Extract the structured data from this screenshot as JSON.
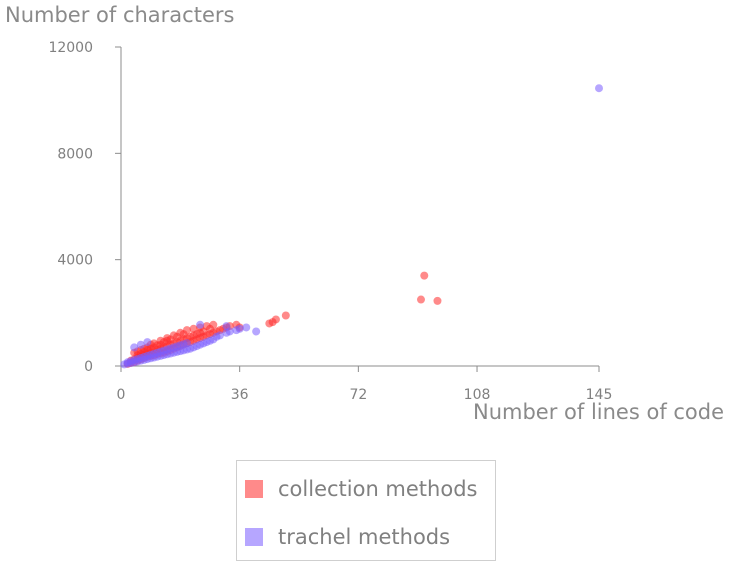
{
  "chart_data": {
    "type": "scatter",
    "xlabel": "Number of lines of code",
    "ylabel": "Number of characters",
    "xlim": [
      0,
      145
    ],
    "ylim": [
      0,
      12000
    ],
    "x_ticks": [
      0,
      36,
      72,
      108,
      145
    ],
    "y_ticks": [
      0,
      4000,
      8000,
      12000
    ],
    "grid": false,
    "legend_position": "bottom-center",
    "series": [
      {
        "name": "collection methods",
        "color": "#ff2a2a",
        "points": [
          [
            2,
            80
          ],
          [
            3,
            120
          ],
          [
            3,
            200
          ],
          [
            4,
            150
          ],
          [
            4,
            250
          ],
          [
            5,
            200
          ],
          [
            5,
            300
          ],
          [
            5,
            400
          ],
          [
            6,
            250
          ],
          [
            6,
            350
          ],
          [
            6,
            450
          ],
          [
            7,
            300
          ],
          [
            7,
            420
          ],
          [
            7,
            520
          ],
          [
            8,
            350
          ],
          [
            8,
            450
          ],
          [
            8,
            600
          ],
          [
            9,
            380
          ],
          [
            9,
            500
          ],
          [
            9,
            650
          ],
          [
            10,
            400
          ],
          [
            10,
            550
          ],
          [
            10,
            700
          ],
          [
            11,
            450
          ],
          [
            11,
            600
          ],
          [
            11,
            780
          ],
          [
            12,
            480
          ],
          [
            12,
            650
          ],
          [
            12,
            800
          ],
          [
            13,
            500
          ],
          [
            13,
            700
          ],
          [
            13,
            900
          ],
          [
            14,
            550
          ],
          [
            14,
            750
          ],
          [
            14,
            950
          ],
          [
            15,
            600
          ],
          [
            15,
            800
          ],
          [
            15,
            1000
          ],
          [
            16,
            650
          ],
          [
            16,
            850
          ],
          [
            17,
            700
          ],
          [
            17,
            900
          ],
          [
            17,
            1100
          ],
          [
            18,
            750
          ],
          [
            18,
            950
          ],
          [
            19,
            800
          ],
          [
            19,
            1000
          ],
          [
            19,
            1200
          ],
          [
            20,
            850
          ],
          [
            20,
            1050
          ],
          [
            21,
            900
          ],
          [
            21,
            1100
          ],
          [
            22,
            950
          ],
          [
            22,
            1150
          ],
          [
            23,
            1000
          ],
          [
            23,
            1200
          ],
          [
            24,
            1050
          ],
          [
            24,
            1250
          ],
          [
            25,
            1100
          ],
          [
            25,
            1300
          ],
          [
            26,
            1150
          ],
          [
            27,
            1200
          ],
          [
            27,
            1400
          ],
          [
            28,
            1250
          ],
          [
            29,
            1300
          ],
          [
            30,
            1350
          ],
          [
            31,
            1400
          ],
          [
            32,
            1450
          ],
          [
            33,
            1500
          ],
          [
            35,
            1550
          ],
          [
            36,
            1450
          ],
          [
            45,
            1600
          ],
          [
            46,
            1650
          ],
          [
            47,
            1750
          ],
          [
            50,
            1900
          ],
          [
            4,
            500
          ],
          [
            5,
            550
          ],
          [
            6,
            600
          ],
          [
            7,
            650
          ],
          [
            8,
            700
          ],
          [
            9,
            800
          ],
          [
            10,
            850
          ],
          [
            12,
            950
          ],
          [
            14,
            1050
          ],
          [
            16,
            1150
          ],
          [
            18,
            1250
          ],
          [
            20,
            1350
          ],
          [
            22,
            1400
          ],
          [
            24,
            1450
          ],
          [
            26,
            1500
          ],
          [
            28,
            1550
          ],
          [
            92,
            3400
          ],
          [
            91,
            2500
          ],
          [
            96,
            2450
          ]
        ]
      },
      {
        "name": "trachel methods",
        "color": "#7a5cff",
        "points": [
          [
            1,
            60
          ],
          [
            2,
            90
          ],
          [
            2,
            140
          ],
          [
            3,
            110
          ],
          [
            3,
            180
          ],
          [
            4,
            140
          ],
          [
            4,
            220
          ],
          [
            5,
            170
          ],
          [
            5,
            260
          ],
          [
            6,
            200
          ],
          [
            6,
            300
          ],
          [
            7,
            230
          ],
          [
            7,
            340
          ],
          [
            8,
            260
          ],
          [
            8,
            380
          ],
          [
            9,
            290
          ],
          [
            9,
            420
          ],
          [
            10,
            320
          ],
          [
            10,
            460
          ],
          [
            11,
            350
          ],
          [
            11,
            500
          ],
          [
            12,
            380
          ],
          [
            12,
            540
          ],
          [
            13,
            410
          ],
          [
            13,
            580
          ],
          [
            14,
            440
          ],
          [
            14,
            620
          ],
          [
            15,
            470
          ],
          [
            15,
            660
          ],
          [
            16,
            500
          ],
          [
            16,
            700
          ],
          [
            17,
            530
          ],
          [
            17,
            740
          ],
          [
            18,
            560
          ],
          [
            18,
            780
          ],
          [
            19,
            590
          ],
          [
            19,
            820
          ],
          [
            20,
            620
          ],
          [
            20,
            860
          ],
          [
            21,
            650
          ],
          [
            22,
            700
          ],
          [
            23,
            750
          ],
          [
            24,
            800
          ],
          [
            25,
            850
          ],
          [
            26,
            900
          ],
          [
            27,
            950
          ],
          [
            28,
            1000
          ],
          [
            29,
            1100
          ],
          [
            30,
            1150
          ],
          [
            32,
            1250
          ],
          [
            33,
            1300
          ],
          [
            35,
            1350
          ],
          [
            36,
            1400
          ],
          [
            38,
            1450
          ],
          [
            41,
            1300
          ],
          [
            32,
            1500
          ],
          [
            4,
            700
          ],
          [
            6,
            800
          ],
          [
            8,
            900
          ],
          [
            24,
            1550
          ],
          [
            145,
            10450
          ]
        ]
      }
    ]
  }
}
